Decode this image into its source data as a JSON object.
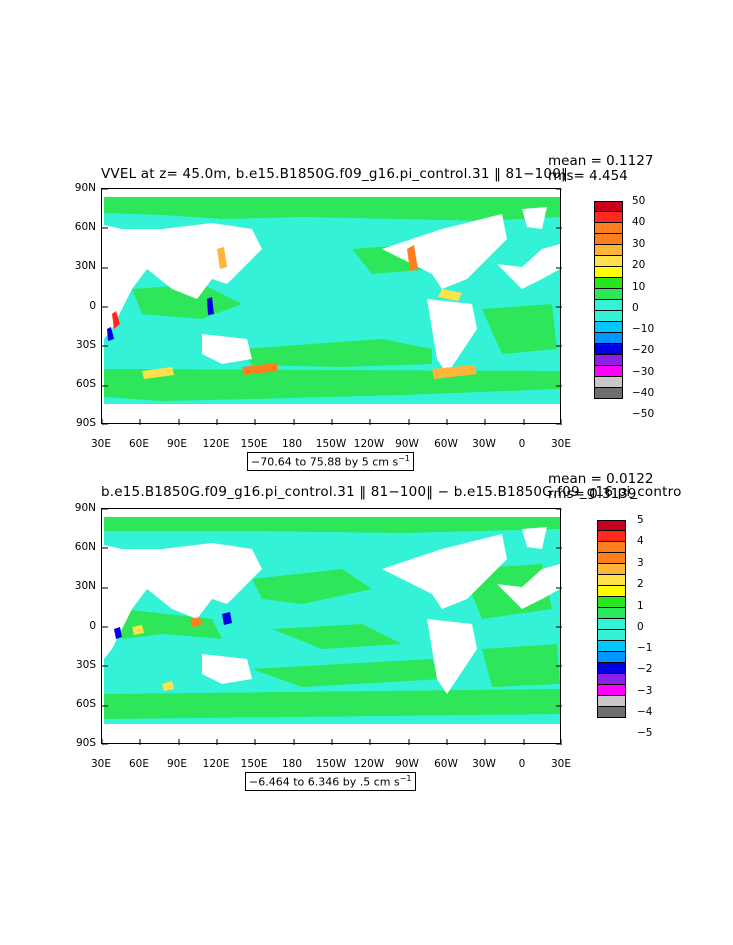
{
  "top": {
    "title": "VVEL at z=  45.0m, b.e15.B1850G.f09_g16.pi_control.31 ‖ 81−100‖",
    "mean": "mean = 0.1127",
    "rms": "rms= 4.454",
    "range_prefix": "−70.64 to 75.88 by 5 cm s",
    "range_exp": "−1",
    "lat_labels": [
      "90N",
      "60N",
      "30N",
      "0",
      "30S",
      "60S",
      "90S"
    ],
    "lon_labels": [
      "30E",
      "60E",
      "90E",
      "120E",
      "150E",
      "180",
      "150W",
      "120W",
      "90W",
      "60W",
      "30W",
      "0",
      "30E"
    ],
    "colorbar_labels": [
      "50",
      "40",
      "30",
      "20",
      "10",
      "0",
      "−10",
      "−20",
      "−30",
      "−40",
      "−50"
    ]
  },
  "bottom": {
    "title": "b.e15.B1850G.f09_g16.pi_control.31 ‖ 81−100‖ − b.e15.B1850G.f09_g16.pi_contro",
    "mean": "mean = 0.0122",
    "rms": "rms= 0.3139",
    "range_prefix": "−6.464 to 6.346 by .5 cm s",
    "range_exp": "−1",
    "lat_labels": [
      "90N",
      "60N",
      "30N",
      "0",
      "30S",
      "60S",
      "90S"
    ],
    "lon_labels": [
      "30E",
      "60E",
      "90E",
      "120E",
      "150E",
      "180",
      "150W",
      "120W",
      "90W",
      "60W",
      "30W",
      "0",
      "30E"
    ],
    "colorbar_labels": [
      "5",
      "4",
      "3",
      "2",
      "1",
      "0",
      "−1",
      "−2",
      "−3",
      "−4",
      "−5"
    ]
  },
  "colors": {
    "ocean_main": "#33f2d8",
    "ocean_pos": "#2ee65a",
    "land": "#ffffff",
    "colorbar": [
      "#c8001e",
      "#ff2a1e",
      "#ff7f1e",
      "#ffb43c",
      "#ffe14b",
      "#ffff00",
      "#26e61e",
      "#33f2d8",
      "#00c8ff",
      "#0096ff",
      "#0000e6",
      "#8c20e6",
      "#ff00ff",
      "#c8c8c8",
      "#6e6e6e"
    ]
  }
}
